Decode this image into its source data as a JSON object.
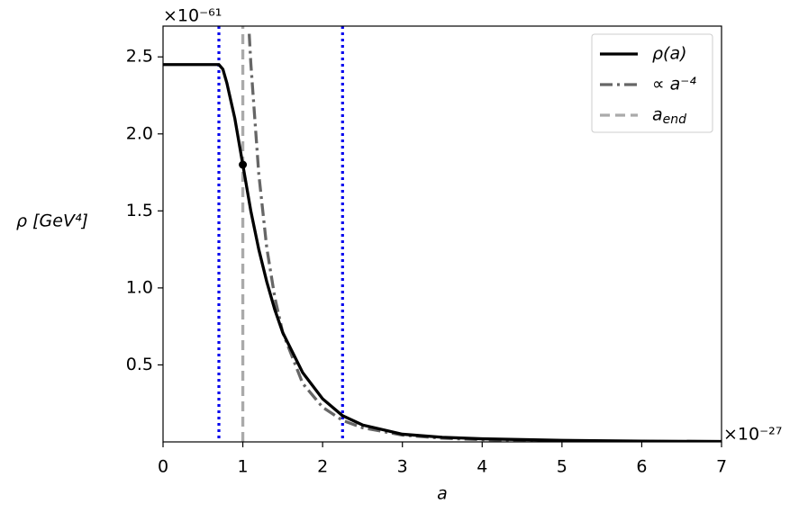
{
  "chart_data": {
    "type": "line",
    "y_multiplier": "×10⁻⁶¹",
    "x_multiplier": "×10⁻²⁷",
    "xlabel": "a",
    "ylabel": "ρ [GeV⁴]",
    "xlim": [
      0,
      7
    ],
    "ylim": [
      0,
      2.7
    ],
    "xticks": [
      0,
      1,
      2,
      3,
      4,
      5,
      6,
      7
    ],
    "yticks": [
      0.5,
      {
        "value": 1,
        "label": "1.0"
      },
      1.5,
      {
        "value": 2,
        "label": "2.0"
      },
      2.5
    ],
    "legend": "upper right",
    "series": [
      {
        "name": "ρ(a)",
        "color": "#000000",
        "style": "solid",
        "x": [
          0,
          0.6,
          0.7,
          0.75,
          0.8,
          0.9,
          1.0,
          1.1,
          1.2,
          1.3,
          1.4,
          1.5,
          1.75,
          2.0,
          2.25,
          2.5,
          3,
          3.5,
          4,
          5,
          6,
          7
        ],
        "values": [
          2.45,
          2.45,
          2.45,
          2.42,
          2.33,
          2.1,
          1.8,
          1.5,
          1.25,
          1.04,
          0.86,
          0.71,
          0.45,
          0.28,
          0.17,
          0.11,
          0.05,
          0.03,
          0.02,
          0.01,
          0.005,
          0.003
        ]
      },
      {
        "name": "∝ a⁻⁴",
        "color": "#666666",
        "style": "dashdot",
        "x": [
          1.08,
          1.1,
          1.2,
          1.3,
          1.4,
          1.5,
          1.75,
          2,
          2.25,
          2.5,
          3,
          3.5,
          4,
          5,
          6,
          7
        ],
        "values": [
          2.65,
          2.46,
          1.74,
          1.26,
          0.94,
          0.71,
          0.38,
          0.225,
          0.14,
          0.092,
          0.044,
          0.024,
          0.014,
          0.0058,
          0.0028,
          0.0015
        ]
      },
      {
        "name": "a",
        "name_sub": "end",
        "color": "#aaaaaa",
        "style": "dashed",
        "x": [
          1,
          1
        ],
        "values": [
          0,
          2.7
        ]
      }
    ],
    "vlines": {
      "color": "#0000ee",
      "style": "dotted",
      "x": [
        0.7,
        2.25
      ]
    },
    "marker": {
      "color": "#000000",
      "x": 1,
      "y": 1.8
    }
  }
}
